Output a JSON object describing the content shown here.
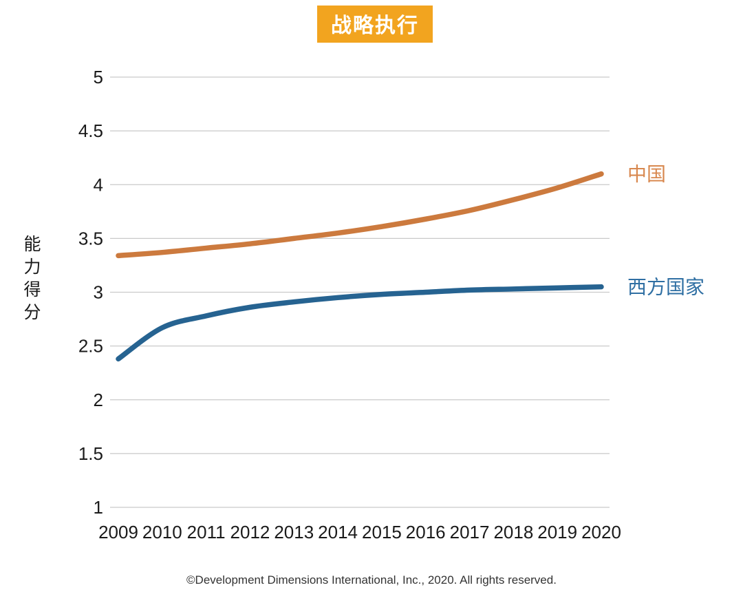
{
  "title": "战略执行",
  "y_axis_title": "能力得分",
  "footer": "©Development Dimensions International, Inc., 2020. All rights reserved.",
  "colors": {
    "title_bg": "#F2A41F",
    "title_text": "#FFFFFF",
    "grid": "#C9C9C9",
    "tick_text": "#1A1A1A",
    "footer_text": "#333333",
    "china_line": "#CC7A3E",
    "china_label": "#D8884F",
    "west_line": "#266391",
    "west_label": "#2F6FA3"
  },
  "chart_data": {
    "type": "line",
    "title": "战略执行",
    "xlabel": "",
    "ylabel": "能力得分",
    "categories": [
      "2009",
      "2010",
      "2011",
      "2012",
      "2013",
      "2014",
      "2015",
      "2016",
      "2017",
      "2018",
      "2019",
      "2020"
    ],
    "yticks": [
      "1",
      "1.5",
      "2",
      "2.5",
      "3",
      "3.5",
      "4",
      "4.5",
      "5"
    ],
    "ylim": [
      1,
      5
    ],
    "grid": "horizontal-only",
    "legend_position": "right-of-line-ends",
    "series": [
      {
        "name": "中国",
        "color": "#CC7A3E",
        "label_color": "#D8884F",
        "values": [
          3.34,
          3.37,
          3.41,
          3.45,
          3.5,
          3.55,
          3.61,
          3.68,
          3.76,
          3.86,
          3.97,
          4.1
        ]
      },
      {
        "name": "西方国家",
        "color": "#266391",
        "label_color": "#2F6FA3",
        "values": [
          2.38,
          2.67,
          2.78,
          2.86,
          2.91,
          2.95,
          2.98,
          3.0,
          3.02,
          3.03,
          3.04,
          3.05
        ]
      }
    ]
  }
}
